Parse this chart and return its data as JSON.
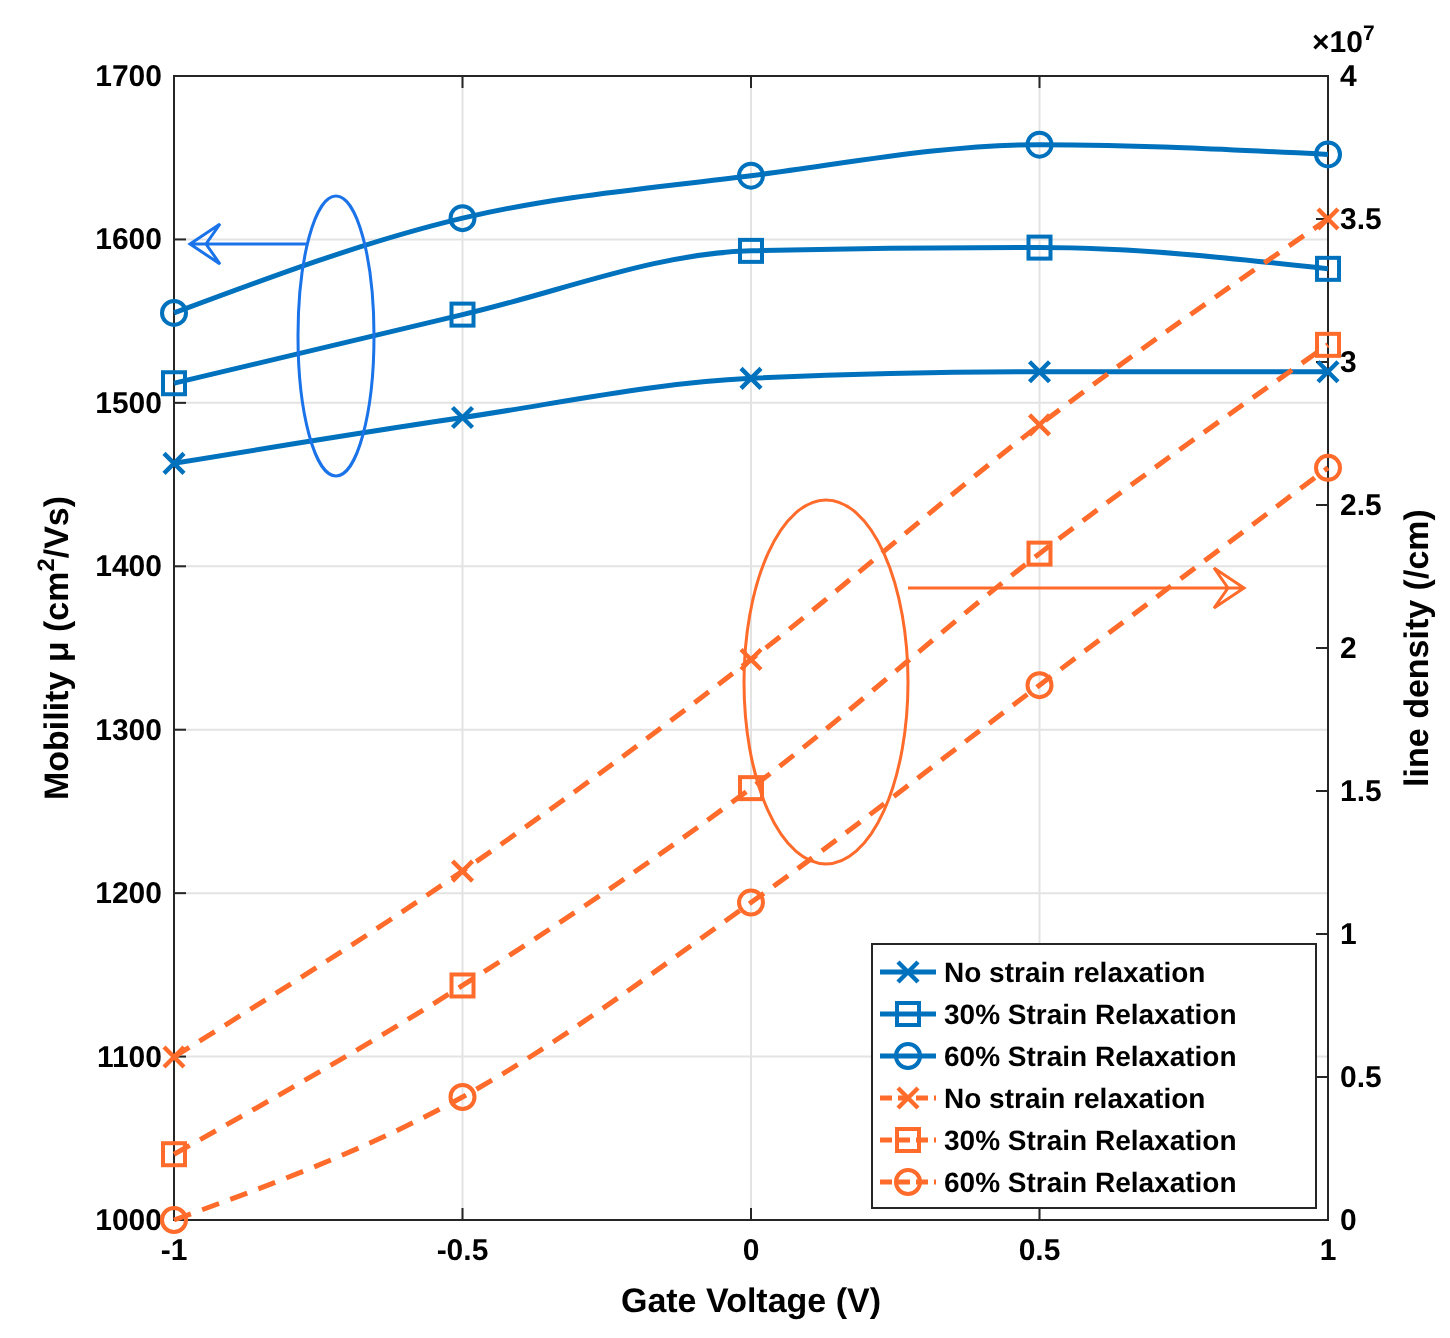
{
  "chart_data": {
    "type": "line",
    "x": [
      -1,
      -0.5,
      0,
      0.5,
      1
    ],
    "xlabel": "Gate Voltage (V)",
    "ylabel": "Mobility μ (cm$^{2}$/Vs)",
    "y2label": "line density (/cm)",
    "annotations": [
      "×10$^{7}$"
    ],
    "xlim": [
      -1,
      1
    ],
    "xticks": [
      -1,
      -0.5,
      0,
      0.5,
      1
    ],
    "ylim": [
      1000,
      1700
    ],
    "yticks": [
      1000,
      1100,
      1200,
      1300,
      1400,
      1500,
      1600,
      1700
    ],
    "y2lim": [
      0,
      4
    ],
    "y2ticks": [
      0,
      0.5,
      1,
      1.5,
      2,
      2.5,
      3,
      3.5,
      4
    ],
    "grid": true,
    "legend": "bottom right",
    "series": [
      {
        "name": "No strain relaxation",
        "color": "#0072bd",
        "marker": "cross",
        "line_style": "solid",
        "values": [
          1463,
          1491,
          1515,
          1519,
          1519
        ]
      },
      {
        "name": "30% Strain Relaxation",
        "color": "#0072bd",
        "marker": "square",
        "line_style": "solid",
        "values": [
          1512,
          1554,
          1593,
          1595,
          1582
        ]
      },
      {
        "name": "60% Strain Relaxation",
        "color": "#0072bd",
        "marker": "circle",
        "line_style": "solid",
        "values": [
          1555,
          1613,
          1639,
          1658,
          1652
        ]
      },
      {
        "name": "No strain relaxation",
        "color": "#ff6b2b",
        "marker": "cross",
        "line_style": "dashed",
        "axis": "y2",
        "values": [
          0.57,
          1.22,
          1.96,
          2.78,
          3.5
        ]
      },
      {
        "name": "30% Strain Relaxation",
        "color": "#ff6b2b",
        "marker": "square",
        "line_style": "dashed",
        "axis": "y2",
        "values": [
          0.23,
          0.82,
          1.51,
          2.33,
          3.06
        ]
      },
      {
        "name": "60% Strain Relaxation",
        "color": "#ff6b2b",
        "marker": "circle",
        "line_style": "dashed",
        "axis": "y2",
        "values": [
          0,
          0.43,
          1.11,
          1.87,
          2.63
        ]
      }
    ]
  }
}
